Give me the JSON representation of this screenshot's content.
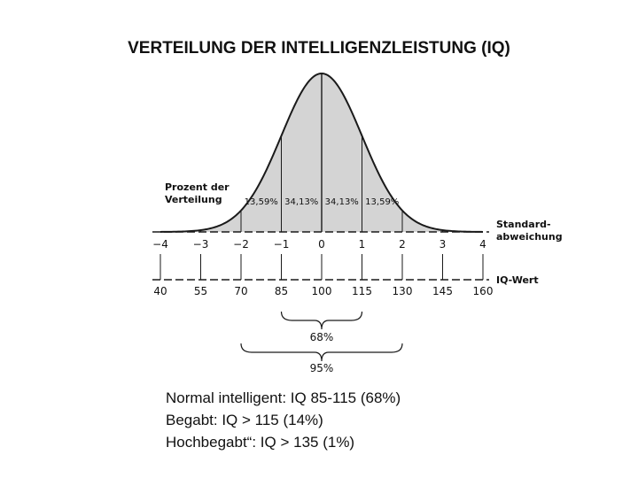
{
  "title": "VERTEILUNG DER INTELLIGENZLEISTUNG (IQ)",
  "figure": {
    "percent_label_line1": "Prozent der",
    "percent_label_line2": "Verteilung",
    "segment_percents": [
      "13,59%",
      "34,13%",
      "34,13%",
      "13,59%"
    ],
    "sd_label_line1": "Standard-",
    "sd_label_line2": "abweichung",
    "iq_axis_label": "IQ-Wert",
    "sd_ticks": [
      "−4",
      "−3",
      "−2",
      "−1",
      "0",
      "1",
      "2",
      "3",
      "4"
    ],
    "iq_ticks": [
      "40",
      "55",
      "70",
      "85",
      "100",
      "115",
      "130",
      "145",
      "160"
    ],
    "bracket_68": "68%",
    "bracket_95": "95%",
    "fill_color": "#d4d4d4",
    "line_color": "#1a1a1a"
  },
  "notes": [
    "Normal intelligent: IQ 85-115 (68%)",
    "Begabt: IQ > 115 (14%)",
    "Hochbegabt“: IQ > 135 (1%)"
  ]
}
